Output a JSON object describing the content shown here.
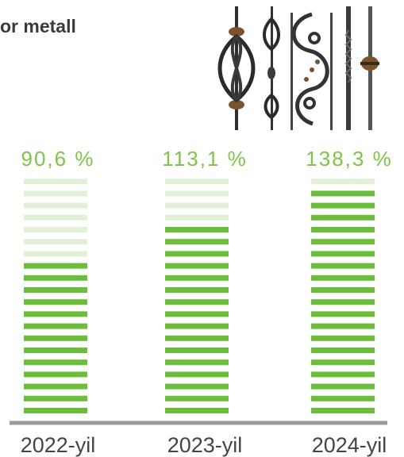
{
  "header": {
    "title_fragment": "or metall"
  },
  "photo": {
    "icon": "wrought-iron-balusters-photo"
  },
  "colors": {
    "accent": "#6cbd3c",
    "faded": "#e2f0d9",
    "text_green": "#7dc544",
    "axis": "#9b9b9b",
    "label": "#444444"
  },
  "chart_data": {
    "type": "bar",
    "style": "stacked-stripes",
    "categories": [
      "2022-yil",
      "2023-yil",
      "2024-yil"
    ],
    "values": [
      90.6,
      113.1,
      138.3
    ],
    "value_labels": [
      "90,6 %",
      "113,1 %",
      "138,3 %"
    ],
    "filled_stripes": [
      13,
      16,
      19
    ],
    "total_stripes": 20,
    "title": "",
    "xlabel": "",
    "ylabel": ""
  }
}
